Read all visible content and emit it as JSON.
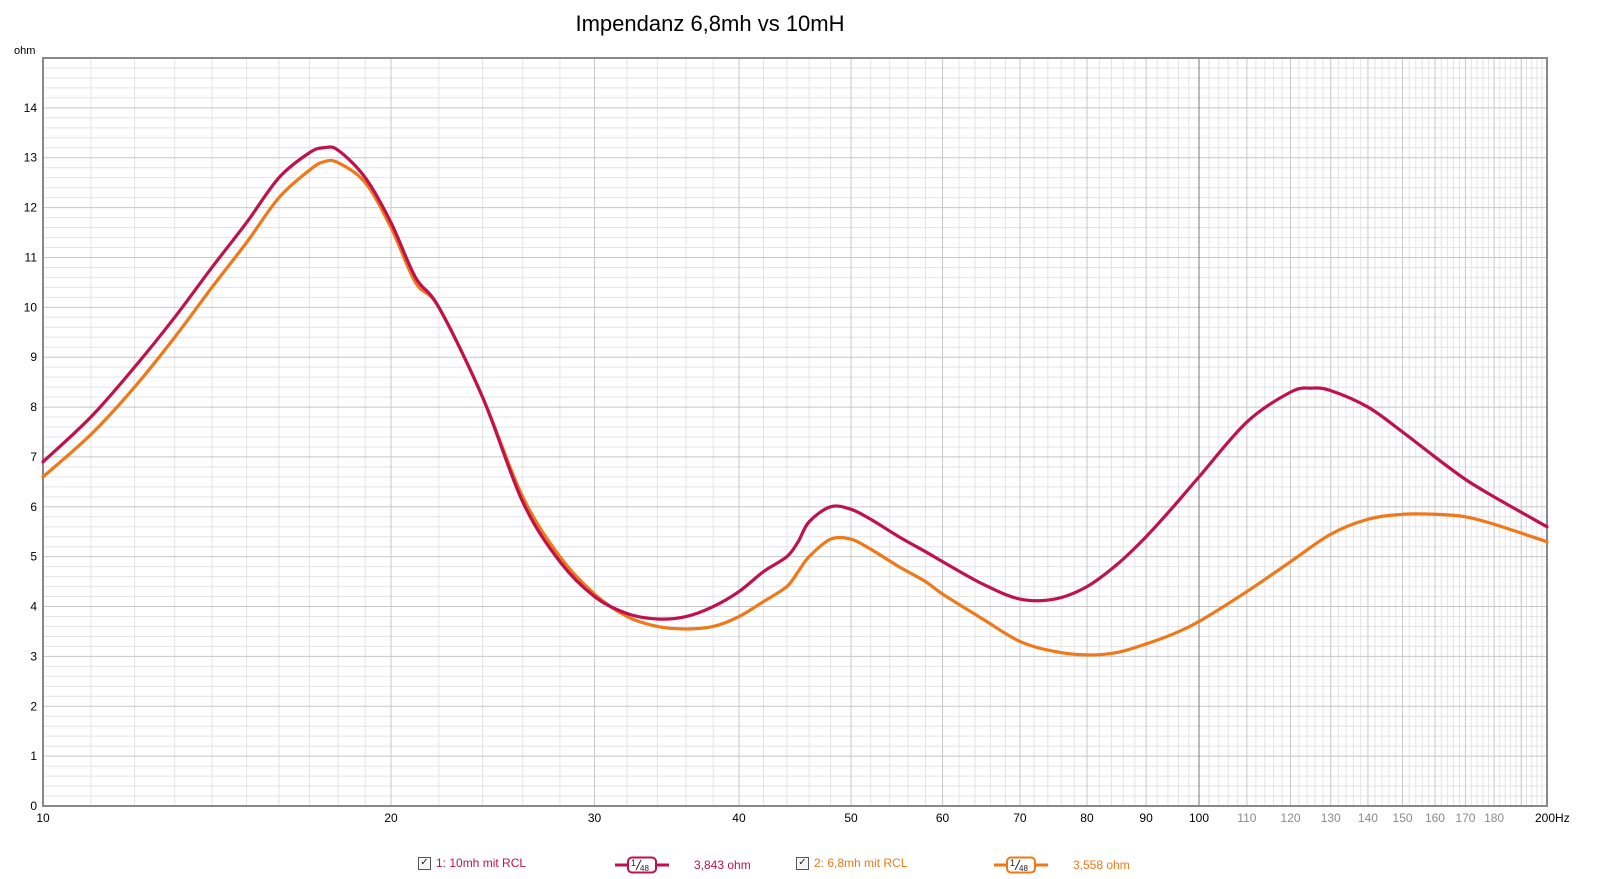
{
  "chart_data": {
    "type": "line",
    "title": "Impendanz 6,8mh vs 10mH",
    "ylabel": "ohm",
    "xunit": "Hz",
    "xscale": "log",
    "xlim": [
      10,
      200
    ],
    "ylim": [
      0,
      15
    ],
    "grid": true,
    "x_ticks": [
      {
        "v": 10,
        "label": "10",
        "style": "dark"
      },
      {
        "v": 20,
        "label": "20",
        "style": "dark"
      },
      {
        "v": 30,
        "label": "30",
        "style": "dark"
      },
      {
        "v": 40,
        "label": "40",
        "style": "dark"
      },
      {
        "v": 50,
        "label": "50",
        "style": "dark"
      },
      {
        "v": 60,
        "label": "60",
        "style": "dark"
      },
      {
        "v": 70,
        "label": "70",
        "style": "dark"
      },
      {
        "v": 80,
        "label": "80",
        "style": "dark"
      },
      {
        "v": 90,
        "label": "90",
        "style": "dark"
      },
      {
        "v": 100,
        "label": "100",
        "style": "dark"
      },
      {
        "v": 110,
        "label": "110",
        "style": "light"
      },
      {
        "v": 120,
        "label": "120",
        "style": "light"
      },
      {
        "v": 130,
        "label": "130",
        "style": "light"
      },
      {
        "v": 140,
        "label": "140",
        "style": "light"
      },
      {
        "v": 150,
        "label": "150",
        "style": "light"
      },
      {
        "v": 160,
        "label": "160",
        "style": "light"
      },
      {
        "v": 170,
        "label": "170",
        "style": "light"
      },
      {
        "v": 180,
        "label": "180",
        "style": "light"
      },
      {
        "v": 200,
        "label": "200Hz",
        "style": "dark"
      }
    ],
    "y_ticks": [
      0,
      1,
      2,
      3,
      4,
      5,
      6,
      7,
      8,
      9,
      10,
      11,
      12,
      13,
      14
    ],
    "series": [
      {
        "name": "1: 10mh mit RCL",
        "color": "#c0124a",
        "points": [
          [
            10,
            6.9
          ],
          [
            11,
            7.8
          ],
          [
            12,
            8.8
          ],
          [
            13,
            9.8
          ],
          [
            14,
            10.8
          ],
          [
            15,
            11.7
          ],
          [
            16,
            12.6
          ],
          [
            17,
            13.1
          ],
          [
            17.5,
            13.2
          ],
          [
            18,
            13.15
          ],
          [
            19,
            12.6
          ],
          [
            20,
            11.7
          ],
          [
            21,
            10.6
          ],
          [
            22,
            10.0
          ],
          [
            24,
            8.2
          ],
          [
            26,
            6.1
          ],
          [
            28,
            4.9
          ],
          [
            30,
            4.2
          ],
          [
            32,
            3.86
          ],
          [
            34,
            3.75
          ],
          [
            36,
            3.8
          ],
          [
            38,
            4.0
          ],
          [
            40,
            4.3
          ],
          [
            42,
            4.7
          ],
          [
            44,
            5.0
          ],
          [
            45,
            5.3
          ],
          [
            46,
            5.7
          ],
          [
            48,
            6.0
          ],
          [
            50,
            5.95
          ],
          [
            52,
            5.75
          ],
          [
            55,
            5.4
          ],
          [
            58,
            5.1
          ],
          [
            60,
            4.9
          ],
          [
            65,
            4.45
          ],
          [
            70,
            4.15
          ],
          [
            75,
            4.15
          ],
          [
            80,
            4.4
          ],
          [
            85,
            4.85
          ],
          [
            90,
            5.4
          ],
          [
            95,
            6.0
          ],
          [
            100,
            6.6
          ],
          [
            110,
            7.7
          ],
          [
            120,
            8.3
          ],
          [
            125,
            8.38
          ],
          [
            130,
            8.33
          ],
          [
            140,
            8.0
          ],
          [
            150,
            7.5
          ],
          [
            160,
            7.0
          ],
          [
            170,
            6.55
          ],
          [
            180,
            6.2
          ],
          [
            200,
            5.6
          ]
        ]
      },
      {
        "name": "2: 6,8mh mit RCL",
        "color": "#f07818",
        "points": [
          [
            10,
            6.6
          ],
          [
            11,
            7.45
          ],
          [
            12,
            8.4
          ],
          [
            13,
            9.4
          ],
          [
            14,
            10.4
          ],
          [
            15,
            11.3
          ],
          [
            16,
            12.2
          ],
          [
            17,
            12.75
          ],
          [
            17.5,
            12.92
          ],
          [
            18,
            12.9
          ],
          [
            19,
            12.5
          ],
          [
            20,
            11.6
          ],
          [
            21,
            10.5
          ],
          [
            22,
            10.0
          ],
          [
            24,
            8.2
          ],
          [
            26,
            6.2
          ],
          [
            28,
            5.0
          ],
          [
            30,
            4.25
          ],
          [
            32,
            3.8
          ],
          [
            34,
            3.6
          ],
          [
            36,
            3.55
          ],
          [
            38,
            3.6
          ],
          [
            40,
            3.8
          ],
          [
            42,
            4.1
          ],
          [
            44,
            4.4
          ],
          [
            45,
            4.7
          ],
          [
            46,
            5.0
          ],
          [
            48,
            5.35
          ],
          [
            50,
            5.35
          ],
          [
            52,
            5.15
          ],
          [
            55,
            4.8
          ],
          [
            58,
            4.5
          ],
          [
            60,
            4.25
          ],
          [
            65,
            3.75
          ],
          [
            70,
            3.3
          ],
          [
            75,
            3.1
          ],
          [
            80,
            3.03
          ],
          [
            85,
            3.08
          ],
          [
            90,
            3.25
          ],
          [
            95,
            3.45
          ],
          [
            100,
            3.7
          ],
          [
            110,
            4.3
          ],
          [
            120,
            4.9
          ],
          [
            130,
            5.45
          ],
          [
            140,
            5.75
          ],
          [
            150,
            5.85
          ],
          [
            160,
            5.85
          ],
          [
            170,
            5.8
          ],
          [
            180,
            5.65
          ],
          [
            200,
            5.3
          ]
        ]
      }
    ],
    "legend": {
      "placement": "bottom",
      "items": [
        {
          "checked": true,
          "label": "1: 10mh mit RCL",
          "smoothing_num": "1",
          "smoothing_den": "48",
          "value": "3,843 ohm",
          "color": "#c0124a",
          "line_color": "#c0124a"
        },
        {
          "checked": true,
          "label": "2: 6,8mh mit RCL",
          "smoothing_num": "1",
          "smoothing_den": "48",
          "value": "3,558 ohm",
          "color": "#f07818",
          "line_color": "#f07818"
        }
      ]
    },
    "colors": {
      "grid_major": "#c8c8c8",
      "grid_minor": "#e4e4e4",
      "grid_emphasis": "#7a7a7a",
      "frame": "#888888"
    }
  }
}
